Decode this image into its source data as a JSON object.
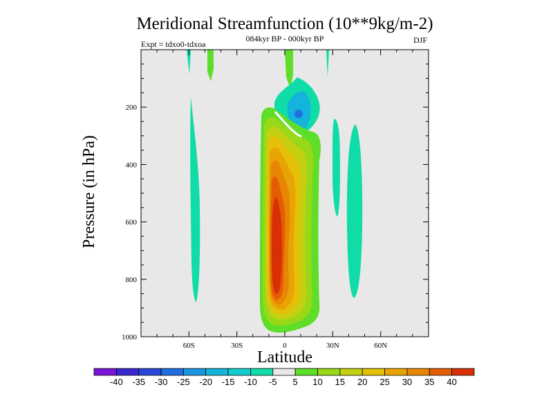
{
  "chart_data": {
    "type": "heatmap",
    "title": "Meridional Streamfunction (10**9kg/m-2)",
    "subtitle": "084kyr BP - 000kyr BP",
    "left_label": "Expt = tdxo0-tdxoa",
    "right_label": "DJF",
    "xlabel": "Latitude",
    "ylabel": "Pressure (in hPa)",
    "xlim": [
      -90,
      90
    ],
    "ylim": [
      1000,
      0
    ],
    "xticks": [
      {
        "value": -60,
        "label": "60S"
      },
      {
        "value": -30,
        "label": "30S"
      },
      {
        "value": 0,
        "label": "0"
      },
      {
        "value": 30,
        "label": "30N"
      },
      {
        "value": 60,
        "label": "60N"
      }
    ],
    "yticks": [
      {
        "value": 200,
        "label": "200"
      },
      {
        "value": 400,
        "label": "400"
      },
      {
        "value": 600,
        "label": "600"
      },
      {
        "value": 800,
        "label": "800"
      },
      {
        "value": 1000,
        "label": "1000"
      }
    ],
    "colorbar": {
      "labels": [
        "-40",
        "-35",
        "-30",
        "-25",
        "-20",
        "-15",
        "-10",
        "-5",
        "5",
        "10",
        "15",
        "20",
        "25",
        "30",
        "35",
        "40"
      ],
      "colors": [
        "#7a14d8",
        "#3a28cf",
        "#2746d9",
        "#1f6fe0",
        "#1a96e0",
        "#14b4dc",
        "#10cccc",
        "#10dca8",
        "#e8e8e8",
        "#5ede28",
        "#98d818",
        "#c6d012",
        "#e4c008",
        "#e8a404",
        "#e88604",
        "#e45c04",
        "#d83004"
      ]
    },
    "fields": [
      {
        "name": "south-band-positive",
        "level": "5",
        "lat_range": [
          -63,
          -57
        ],
        "p_range": [
          220,
          880
        ]
      },
      {
        "name": "equatorial-cell-positive",
        "level": "40",
        "lat_range": [
          -10,
          20
        ],
        "p_range": [
          250,
          985
        ],
        "core_lat": -1,
        "core_p": 700
      },
      {
        "name": "upper-negative-cell",
        "level": "-15",
        "lat_range": [
          0,
          18
        ],
        "p_range": [
          120,
          290
        ],
        "core_lat": 9,
        "core_p": 225
      },
      {
        "name": "north-band-positive-1",
        "level": "5",
        "lat_range": [
          30,
          35
        ],
        "p_range": [
          240,
          620
        ]
      },
      {
        "name": "north-band-positive-2",
        "level": "5",
        "lat_range": [
          41,
          50
        ],
        "p_range": [
          260,
          870
        ]
      }
    ]
  }
}
